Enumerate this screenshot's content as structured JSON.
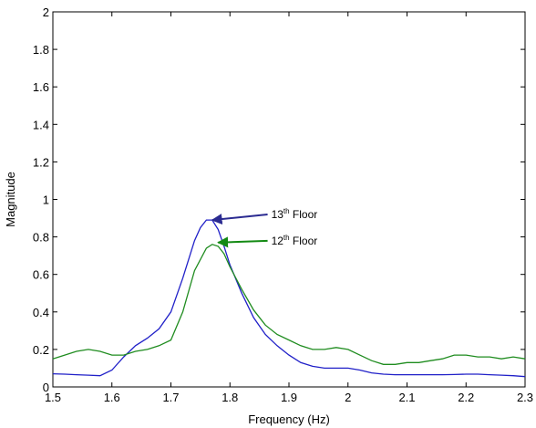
{
  "chart_data": {
    "type": "line",
    "title": "",
    "xlabel": "Frequency (Hz)",
    "ylabel": "Magnitude",
    "xlim": [
      1.5,
      2.3
    ],
    "ylim": [
      0,
      2
    ],
    "x_ticks": [
      1.5,
      1.6,
      1.7,
      1.8,
      1.9,
      2.0,
      2.1,
      2.2,
      2.3
    ],
    "x_tick_labels": [
      "1.5",
      "1.6",
      "1.7",
      "1.8",
      "1.9",
      "2",
      "2.1",
      "2.2",
      "2.3"
    ],
    "y_ticks": [
      0,
      0.2,
      0.4,
      0.6,
      0.8,
      1.0,
      1.2,
      1.4,
      1.6,
      1.8,
      2.0
    ],
    "y_tick_labels": [
      "0",
      "0.2",
      "0.4",
      "0.6",
      "0.8",
      "1",
      "1.2",
      "1.4",
      "1.6",
      "1.8",
      "2"
    ],
    "grid": false,
    "series": [
      {
        "color": "#2020c8",
        "x": [
          1.5,
          1.52,
          1.54,
          1.56,
          1.58,
          1.6,
          1.62,
          1.64,
          1.66,
          1.68,
          1.7,
          1.72,
          1.74,
          1.75,
          1.76,
          1.77,
          1.78,
          1.79,
          1.8,
          1.82,
          1.84,
          1.86,
          1.88,
          1.9,
          1.92,
          1.94,
          1.96,
          1.98,
          2.0,
          2.02,
          2.04,
          2.06,
          2.08,
          2.1,
          2.12,
          2.14,
          2.16,
          2.18,
          2.2,
          2.22,
          2.24,
          2.26,
          2.28,
          2.3
        ],
        "y": [
          0.07,
          0.068,
          0.065,
          0.063,
          0.06,
          0.09,
          0.16,
          0.22,
          0.26,
          0.31,
          0.4,
          0.58,
          0.78,
          0.85,
          0.89,
          0.89,
          0.84,
          0.75,
          0.65,
          0.5,
          0.37,
          0.28,
          0.22,
          0.17,
          0.13,
          0.11,
          0.1,
          0.1,
          0.1,
          0.09,
          0.075,
          0.068,
          0.065,
          0.065,
          0.065,
          0.065,
          0.065,
          0.066,
          0.068,
          0.068,
          0.065,
          0.063,
          0.06,
          0.055
        ]
      },
      {
        "color": "#1f8c1f",
        "x": [
          1.5,
          1.52,
          1.54,
          1.56,
          1.58,
          1.6,
          1.62,
          1.64,
          1.66,
          1.68,
          1.7,
          1.72,
          1.74,
          1.76,
          1.77,
          1.78,
          1.79,
          1.8,
          1.82,
          1.84,
          1.86,
          1.88,
          1.9,
          1.92,
          1.94,
          1.96,
          1.98,
          2.0,
          2.02,
          2.04,
          2.06,
          2.08,
          2.1,
          2.12,
          2.14,
          2.16,
          2.18,
          2.2,
          2.22,
          2.24,
          2.26,
          2.28,
          2.3
        ],
        "y": [
          0.15,
          0.17,
          0.19,
          0.2,
          0.19,
          0.17,
          0.17,
          0.19,
          0.2,
          0.22,
          0.25,
          0.4,
          0.62,
          0.74,
          0.76,
          0.75,
          0.71,
          0.64,
          0.52,
          0.41,
          0.33,
          0.28,
          0.25,
          0.22,
          0.2,
          0.2,
          0.21,
          0.2,
          0.17,
          0.14,
          0.12,
          0.12,
          0.13,
          0.13,
          0.14,
          0.15,
          0.17,
          0.17,
          0.16,
          0.16,
          0.15,
          0.16,
          0.15
        ]
      }
    ],
    "annotations": [
      {
        "base": "13",
        "sup": "th",
        "rest": " Floor",
        "color": "#2b2b91",
        "arrow_tip": [
          1.77,
          0.89
        ],
        "text_at": [
          1.87,
          0.9
        ]
      },
      {
        "base": "12",
        "sup": "th",
        "rest": " Floor",
        "color": "#138a13",
        "arrow_tip": [
          1.78,
          0.77
        ],
        "text_at": [
          1.87,
          0.76
        ]
      }
    ]
  }
}
